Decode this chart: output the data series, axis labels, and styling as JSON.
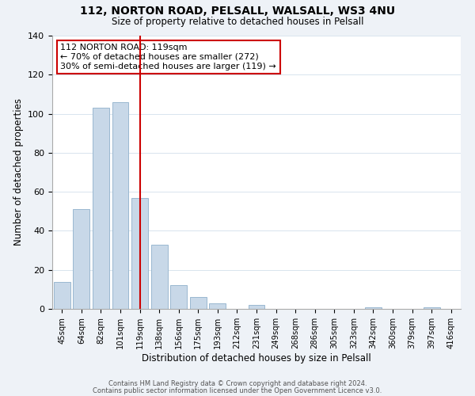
{
  "title": "112, NORTON ROAD, PELSALL, WALSALL, WS3 4NU",
  "subtitle": "Size of property relative to detached houses in Pelsall",
  "xlabel": "Distribution of detached houses by size in Pelsall",
  "ylabel": "Number of detached properties",
  "bar_labels": [
    "45sqm",
    "64sqm",
    "82sqm",
    "101sqm",
    "119sqm",
    "138sqm",
    "156sqm",
    "175sqm",
    "193sqm",
    "212sqm",
    "231sqm",
    "249sqm",
    "268sqm",
    "286sqm",
    "305sqm",
    "323sqm",
    "342sqm",
    "360sqm",
    "379sqm",
    "397sqm",
    "416sqm"
  ],
  "bar_heights": [
    14,
    51,
    103,
    106,
    57,
    33,
    12,
    6,
    3,
    0,
    2,
    0,
    0,
    0,
    0,
    0,
    1,
    0,
    0,
    1,
    0
  ],
  "bar_color": "#c8d8e8",
  "bar_edge_color": "#9ab8d0",
  "vline_x_index": 4,
  "vline_color": "#cc0000",
  "annotation_text_line1": "112 NORTON ROAD: 119sqm",
  "annotation_text_line2": "← 70% of detached houses are smaller (272)",
  "annotation_text_line3": "30% of semi-detached houses are larger (119) →",
  "ylim": [
    0,
    140
  ],
  "yticks": [
    0,
    20,
    40,
    60,
    80,
    100,
    120,
    140
  ],
  "footer_line1": "Contains HM Land Registry data © Crown copyright and database right 2024.",
  "footer_line2": "Contains public sector information licensed under the Open Government Licence v3.0.",
  "background_color": "#eef2f7",
  "plot_bg_color": "#ffffff",
  "grid_color": "#d8e4ee"
}
